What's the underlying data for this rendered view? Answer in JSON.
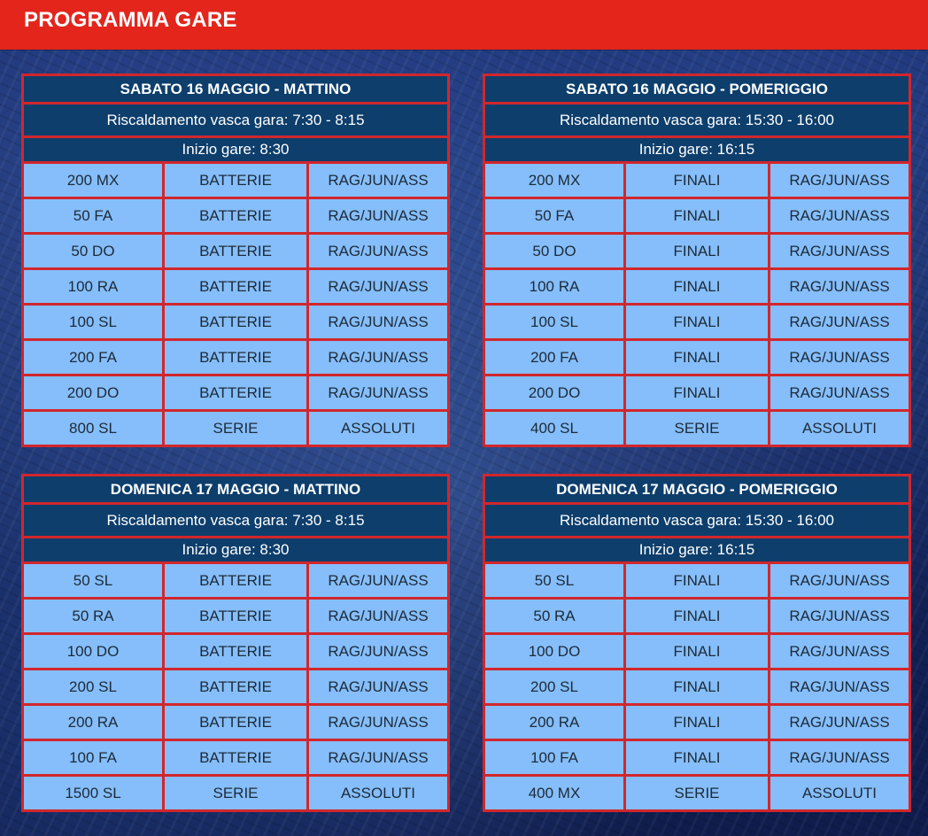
{
  "header": {
    "title": "PROGRAMMA GARE"
  },
  "sessions": [
    {
      "title": "SABATO 16 MAGGIO - MATTINO",
      "warmup": "Riscaldamento vasca gara: 7:30 - 8:15",
      "start": "Inizio gare: 8:30",
      "events": [
        {
          "race": "200 MX",
          "phase": "BATTERIE",
          "category": "RAG/JUN/ASS"
        },
        {
          "race": "50 FA",
          "phase": "BATTERIE",
          "category": "RAG/JUN/ASS"
        },
        {
          "race": "50 DO",
          "phase": "BATTERIE",
          "category": "RAG/JUN/ASS"
        },
        {
          "race": "100 RA",
          "phase": "BATTERIE",
          "category": "RAG/JUN/ASS"
        },
        {
          "race": "100 SL",
          "phase": "BATTERIE",
          "category": "RAG/JUN/ASS"
        },
        {
          "race": "200 FA",
          "phase": "BATTERIE",
          "category": "RAG/JUN/ASS"
        },
        {
          "race": "200 DO",
          "phase": "BATTERIE",
          "category": "RAG/JUN/ASS"
        },
        {
          "race": "800 SL",
          "phase": "SERIE",
          "category": "ASSOLUTI"
        }
      ]
    },
    {
      "title": "SABATO 16 MAGGIO - POMERIGGIO",
      "warmup": "Riscaldamento vasca gara: 15:30 - 16:00",
      "start": "Inizio gare: 16:15",
      "events": [
        {
          "race": "200 MX",
          "phase": "FINALI",
          "category": "RAG/JUN/ASS"
        },
        {
          "race": "50 FA",
          "phase": "FINALI",
          "category": "RAG/JUN/ASS"
        },
        {
          "race": "50 DO",
          "phase": "FINALI",
          "category": "RAG/JUN/ASS"
        },
        {
          "race": "100 RA",
          "phase": "FINALI",
          "category": "RAG/JUN/ASS"
        },
        {
          "race": "100 SL",
          "phase": "FINALI",
          "category": "RAG/JUN/ASS"
        },
        {
          "race": "200 FA",
          "phase": "FINALI",
          "category": "RAG/JUN/ASS"
        },
        {
          "race": "200 DO",
          "phase": "FINALI",
          "category": "RAG/JUN/ASS"
        },
        {
          "race": "400 SL",
          "phase": "SERIE",
          "category": "ASSOLUTI"
        }
      ]
    },
    {
      "title": "DOMENICA 17 MAGGIO - MATTINO",
      "warmup": "Riscaldamento vasca gara: 7:30 - 8:15",
      "start": "Inizio gare: 8:30",
      "events": [
        {
          "race": "50 SL",
          "phase": "BATTERIE",
          "category": "RAG/JUN/ASS"
        },
        {
          "race": "50 RA",
          "phase": "BATTERIE",
          "category": "RAG/JUN/ASS"
        },
        {
          "race": "100 DO",
          "phase": "BATTERIE",
          "category": "RAG/JUN/ASS"
        },
        {
          "race": "200 SL",
          "phase": "BATTERIE",
          "category": "RAG/JUN/ASS"
        },
        {
          "race": "200 RA",
          "phase": "BATTERIE",
          "category": "RAG/JUN/ASS"
        },
        {
          "race": "100 FA",
          "phase": "BATTERIE",
          "category": "RAG/JUN/ASS"
        },
        {
          "race": "1500 SL",
          "phase": "SERIE",
          "category": "ASSOLUTI"
        }
      ]
    },
    {
      "title": "DOMENICA 17 MAGGIO - POMERIGGIO",
      "warmup": "Riscaldamento vasca gara: 15:30 - 16:00",
      "start": "Inizio gare: 16:15",
      "events": [
        {
          "race": "50 SL",
          "phase": "FINALI",
          "category": "RAG/JUN/ASS"
        },
        {
          "race": "50 RA",
          "phase": "FINALI",
          "category": "RAG/JUN/ASS"
        },
        {
          "race": "100 DO",
          "phase": "FINALI",
          "category": "RAG/JUN/ASS"
        },
        {
          "race": "200 SL",
          "phase": "FINALI",
          "category": "RAG/JUN/ASS"
        },
        {
          "race": "200 RA",
          "phase": "FINALI",
          "category": "RAG/JUN/ASS"
        },
        {
          "race": "100 FA",
          "phase": "FINALI",
          "category": "RAG/JUN/ASS"
        },
        {
          "race": "400 MX",
          "phase": "SERIE",
          "category": "ASSOLUTI"
        }
      ]
    }
  ]
}
